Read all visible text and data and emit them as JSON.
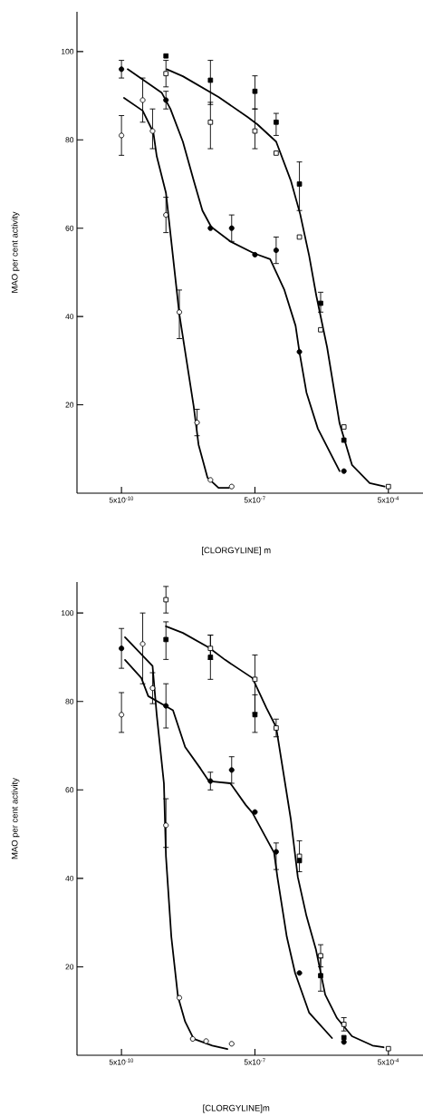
{
  "chart_data": [
    {
      "type": "scatter",
      "xlabel": "[CLORGYLINE] m",
      "ylabel": "MAO per cent activity",
      "log": "x",
      "xlim": [
        5e-11,
        0.003
      ],
      "ylim": [
        0,
        109
      ],
      "xticks": [
        {
          "value": 5e-10,
          "label": "5x10$^{-10}$"
        },
        {
          "value": 5e-07,
          "label": "5x10$^{-7}$"
        },
        {
          "value": 0.0005,
          "label": "5x10$^{-4}$"
        }
      ],
      "yticks": [
        20,
        40,
        60,
        80,
        100
      ],
      "series": [
        {
          "type": "line",
          "color": "#000000",
          "marker": "none",
          "x": [
            5.7e-10,
            1.5e-09,
            2.6e-09,
            3.1e-09,
            5e-09,
            1e-08,
            2.1e-08,
            2.7e-08,
            4.3e-08,
            7.6e-08,
            1.3e-07
          ],
          "values": [
            89.5,
            86.6,
            81.7,
            76.3,
            68,
            40.5,
            19.7,
            11,
            3.5,
            1.2,
            1.2
          ]
        },
        {
          "type": "line",
          "color": "#000000",
          "marker": "none",
          "x": [
            6.9e-10,
            4e-09,
            6.3e-09,
            1.2e-08,
            2.1e-08,
            3.3e-08,
            5.2e-08,
            1.4e-07,
            4.8e-07,
            1.1e-06,
            2.3e-06,
            4.1e-06,
            5e-06,
            7.2e-06,
            1.3e-05,
            4e-05
          ],
          "values": [
            96,
            90.7,
            87,
            79.6,
            70.8,
            64,
            60.3,
            57,
            54.3,
            53,
            46,
            37.9,
            32,
            22.8,
            14.6,
            5
          ]
        },
        {
          "type": "line",
          "color": "#000000",
          "marker": "none",
          "x": [
            5.2e-09,
            1.2e-08,
            7.6e-08,
            3.4e-07,
            5.7e-07,
            1.5e-06,
            3.2e-06,
            5.2e-06,
            8.3e-06,
            1.2e-05,
            2.1e-05,
            4e-05,
            7.6e-05,
            0.00019,
            0.00041
          ],
          "values": [
            96,
            94.4,
            89.7,
            85.2,
            83.5,
            79.6,
            70.8,
            63.2,
            53.7,
            44.7,
            33,
            15.8,
            6.4,
            2.3,
            1.5
          ]
        },
        {
          "color": "#ffffff",
          "marker": "circle",
          "x": [
            5e-10,
            1.5e-09,
            2.5e-09,
            5e-09,
            1e-08,
            2.5e-08,
            5e-08,
            1.5e-07
          ],
          "values": [
            81,
            89,
            82,
            63,
            41,
            16,
            3,
            1.5
          ],
          "errors": [
            [
              76.5,
              85.5
            ],
            [
              84,
              94
            ],
            [
              78,
              87
            ],
            [
              59,
              67
            ],
            [
              35,
              46
            ],
            [
              13,
              19
            ],
            null,
            null
          ]
        },
        {
          "color": "#000000",
          "marker": "circle",
          "x": [
            5e-10,
            5e-09,
            5e-08,
            1.5e-07,
            5e-07,
            1.5e-06,
            5e-06,
            5e-05
          ],
          "values": [
            96,
            89,
            60,
            60,
            54,
            55,
            32,
            5
          ],
          "errors": [
            [
              94,
              98
            ],
            [
              87,
              91
            ],
            null,
            [
              57,
              63
            ],
            null,
            [
              52,
              58
            ],
            null,
            null
          ]
        },
        {
          "color": "#ffffff",
          "marker": "square",
          "x": [
            5e-09,
            5e-08,
            5e-07,
            1.5e-06,
            5e-06,
            1.5e-05,
            5e-05,
            0.0005
          ],
          "values": [
            95,
            84,
            82,
            77,
            58,
            37,
            15,
            1.5
          ],
          "errors": [
            [
              92,
              98
            ],
            [
              78,
              88.5
            ],
            [
              78,
              87
            ],
            null,
            null,
            null,
            null,
            null
          ]
        },
        {
          "color": "#000000",
          "marker": "square",
          "x": [
            5e-09,
            5e-08,
            5e-07,
            1.5e-06,
            5e-06,
            1.5e-05,
            5e-05
          ],
          "values": [
            99,
            93.5,
            91,
            84,
            70,
            43,
            12
          ],
          "errors": [
            null,
            [
              88,
              98
            ],
            [
              87,
              94.5
            ],
            [
              81,
              86
            ],
            [
              64,
              75
            ],
            [
              41,
              45.5
            ],
            null
          ]
        }
      ]
    },
    {
      "type": "scatter",
      "xlabel": "[CLORGYLINE]m",
      "ylabel": "MAO per cent activity",
      "log": "x",
      "xlim": [
        5e-11,
        0.003
      ],
      "ylim": [
        0,
        107
      ],
      "xticks": [
        {
          "value": 5e-10,
          "label": "5x10$^{-10}$"
        },
        {
          "value": 5e-07,
          "label": "5x10$^{-7}$"
        },
        {
          "value": 0.0005,
          "label": "5x10$^{-4}$"
        }
      ],
      "yticks": [
        20,
        40,
        60,
        80,
        100
      ],
      "series": [
        {
          "type": "line",
          "color": "#000000",
          "marker": "none",
          "x": [
            6e-10,
            2.5e-09,
            3.1e-09,
            4.5e-09,
            5e-09,
            6.6e-09,
            9.3e-09,
            1.35e-08,
            2.1e-08,
            5.5e-08,
            1.2e-07
          ],
          "values": [
            94.5,
            88,
            77,
            61.5,
            45,
            26.8,
            13.3,
            7.6,
            3.7,
            2.2,
            1.4
          ]
        },
        {
          "type": "line",
          "color": "#000000",
          "marker": "none",
          "x": [
            6e-10,
            1.4e-09,
            2e-09,
            7.2e-09,
            1.35e-08,
            3e-08,
            4.6e-08,
            1.4e-07,
            3.1e-07,
            4.4e-07,
            1.35e-06,
            1.6e-06,
            2.6e-06,
            4e-06,
            8.3e-06,
            2.7e-05
          ],
          "values": [
            89.4,
            85.3,
            81.2,
            78,
            69.7,
            64.8,
            62,
            61.5,
            56.6,
            54.8,
            45.8,
            40.3,
            26.8,
            18.6,
            9.6,
            3.9
          ]
        },
        {
          "type": "line",
          "color": "#000000",
          "marker": "none",
          "x": [
            5e-09,
            1.2e-08,
            4.6e-08,
            1.07e-07,
            4.4e-07,
            9.1e-07,
            1.5e-06,
            3.2e-06,
            4.6e-06,
            7.2e-06,
            1.17e-05,
            1.9e-05,
            3.5e-05,
            7.6e-05,
            0.00022,
            0.00039
          ],
          "values": [
            97,
            95.5,
            92.2,
            89.4,
            85.3,
            78.5,
            74.2,
            53.4,
            40.3,
            31.5,
            24,
            13.7,
            8.4,
            4.3,
            2.2,
            1.8
          ]
        },
        {
          "color": "#ffffff",
          "marker": "circle",
          "x": [
            5e-10,
            1.5e-09,
            2.5e-09,
            5e-09,
            1e-08,
            2e-08,
            4e-08,
            1.5e-07
          ],
          "values": [
            77,
            93,
            83,
            52,
            13,
            3.7,
            3.2,
            2.6
          ],
          "errors": [
            [
              73,
              82
            ],
            [
              84,
              100
            ],
            [
              79.5,
              86.5
            ],
            [
              47,
              58
            ],
            null,
            null,
            null,
            null
          ]
        },
        {
          "color": "#000000",
          "marker": "circle",
          "x": [
            5e-10,
            5e-09,
            5e-08,
            1.5e-07,
            5e-07,
            1.5e-06,
            5e-06,
            5e-05
          ],
          "values": [
            92,
            79,
            62,
            64.5,
            55,
            46,
            18.6,
            3
          ],
          "errors": [
            [
              87.5,
              96.5
            ],
            [
              74,
              84
            ],
            [
              60,
              64
            ],
            [
              61.5,
              67.5
            ],
            null,
            [
              42,
              48
            ],
            null,
            null
          ]
        },
        {
          "color": "#ffffff",
          "marker": "square",
          "x": [
            5e-09,
            5e-08,
            5e-07,
            1.5e-06,
            5e-06,
            1.5e-05,
            5e-05,
            0.0005
          ],
          "values": [
            103,
            92,
            85,
            74,
            45,
            22.5,
            7,
            1.5
          ],
          "errors": [
            [
              100,
              106
            ],
            [
              89.5,
              95
            ],
            [
              77.5,
              90.5
            ],
            [
              72,
              76
            ],
            [
              41.5,
              48.5
            ],
            [
              20,
              25
            ],
            [
              5.5,
              8.5
            ],
            null
          ]
        },
        {
          "color": "#000000",
          "marker": "square",
          "x": [
            5e-09,
            5e-08,
            5e-07,
            5e-06,
            1.5e-05,
            5e-05
          ],
          "values": [
            94,
            90,
            77,
            44,
            18,
            4
          ],
          "errors": [
            [
              89.5,
              98
            ],
            [
              85,
              95
            ],
            [
              73,
              81.5
            ],
            null,
            [
              14.5,
              22
            ],
            null
          ]
        }
      ]
    }
  ]
}
